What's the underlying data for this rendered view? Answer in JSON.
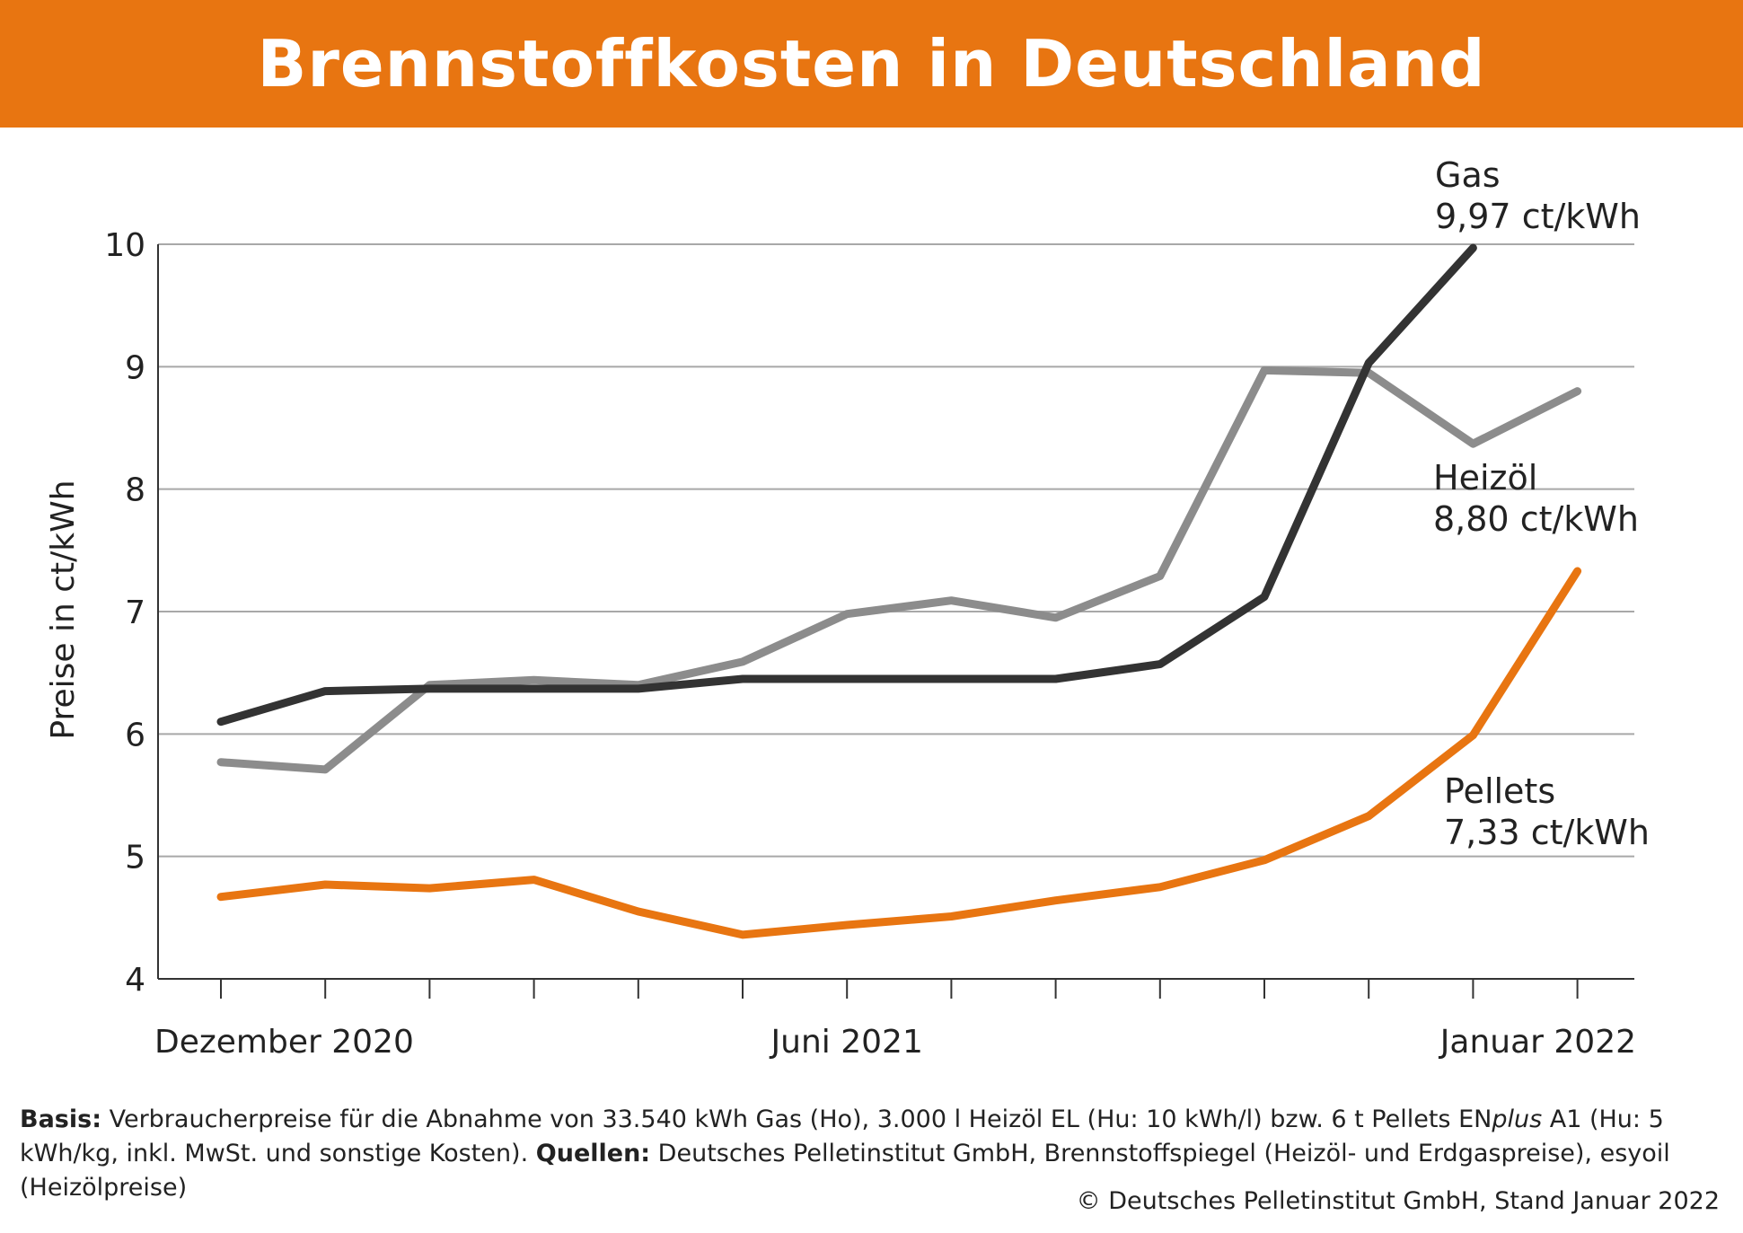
{
  "chart_data": {
    "type": "line",
    "title": "Brennstoffkosten in Deutschland",
    "ylabel": "Preise in ct/kWh",
    "xlabel": "",
    "ylim": [
      4,
      10
    ],
    "yticks": [
      "4",
      "5",
      "6",
      "7",
      "8",
      "9",
      "10"
    ],
    "x_tick_labels": [
      "Dezember 2020",
      "Juni 2021",
      "Januar 2022"
    ],
    "x": [
      "Dez 2020",
      "Jan 2021",
      "Feb 2021",
      "Mär 2021",
      "Apr 2021",
      "Mai 2021",
      "Jun 2021",
      "Jul 2021",
      "Aug 2021",
      "Sep 2021",
      "Okt 2021",
      "Nov 2021",
      "Dez 2021",
      "Jan 2022"
    ],
    "grid": "horizontal",
    "series": [
      {
        "name": "Gas",
        "end_label": "9,97 ct/kWh",
        "color": "#333333",
        "values": [
          6.1,
          6.35,
          6.37,
          6.37,
          6.37,
          6.45,
          6.45,
          6.45,
          6.45,
          6.57,
          7.12,
          9.03,
          9.97,
          null
        ]
      },
      {
        "name": "Heizöl",
        "end_label": "8,80 ct/kWh",
        "color": "#8c8c8c",
        "values": [
          5.77,
          5.71,
          6.4,
          6.44,
          6.4,
          6.59,
          6.98,
          7.09,
          6.95,
          7.29,
          8.97,
          8.95,
          8.37,
          8.8
        ]
      },
      {
        "name": "Pellets",
        "end_label": "7,33 ct/kWh",
        "color": "#e87511",
        "values": [
          4.67,
          4.77,
          4.74,
          4.81,
          4.55,
          4.36,
          4.44,
          4.51,
          4.64,
          4.75,
          4.97,
          5.33,
          5.99,
          7.33
        ]
      }
    ]
  },
  "footnote": {
    "basis_label": "Basis:",
    "basis_text_1": " Verbraucherpreise für die Abnahme von 33.540 kWh Gas (Ho), 3.000 l Heizöl EL (Hu: 10 kWh/l) bzw. 6 t Pellets EN",
    "basis_italic": "plus",
    "basis_text_2": " A1 (Hu: 5 kWh/kg, inkl. MwSt. und sonstige Kosten). ",
    "sources_label": "Quellen:",
    "sources_text": " Deutsches Pelletinstitut GmbH, Brennstoffspiegel (Heizöl- und Erdgaspreise), esyoil (Heizölpreise)"
  },
  "copyright": "© Deutsches Pelletinstitut GmbH, Stand Januar 2022"
}
